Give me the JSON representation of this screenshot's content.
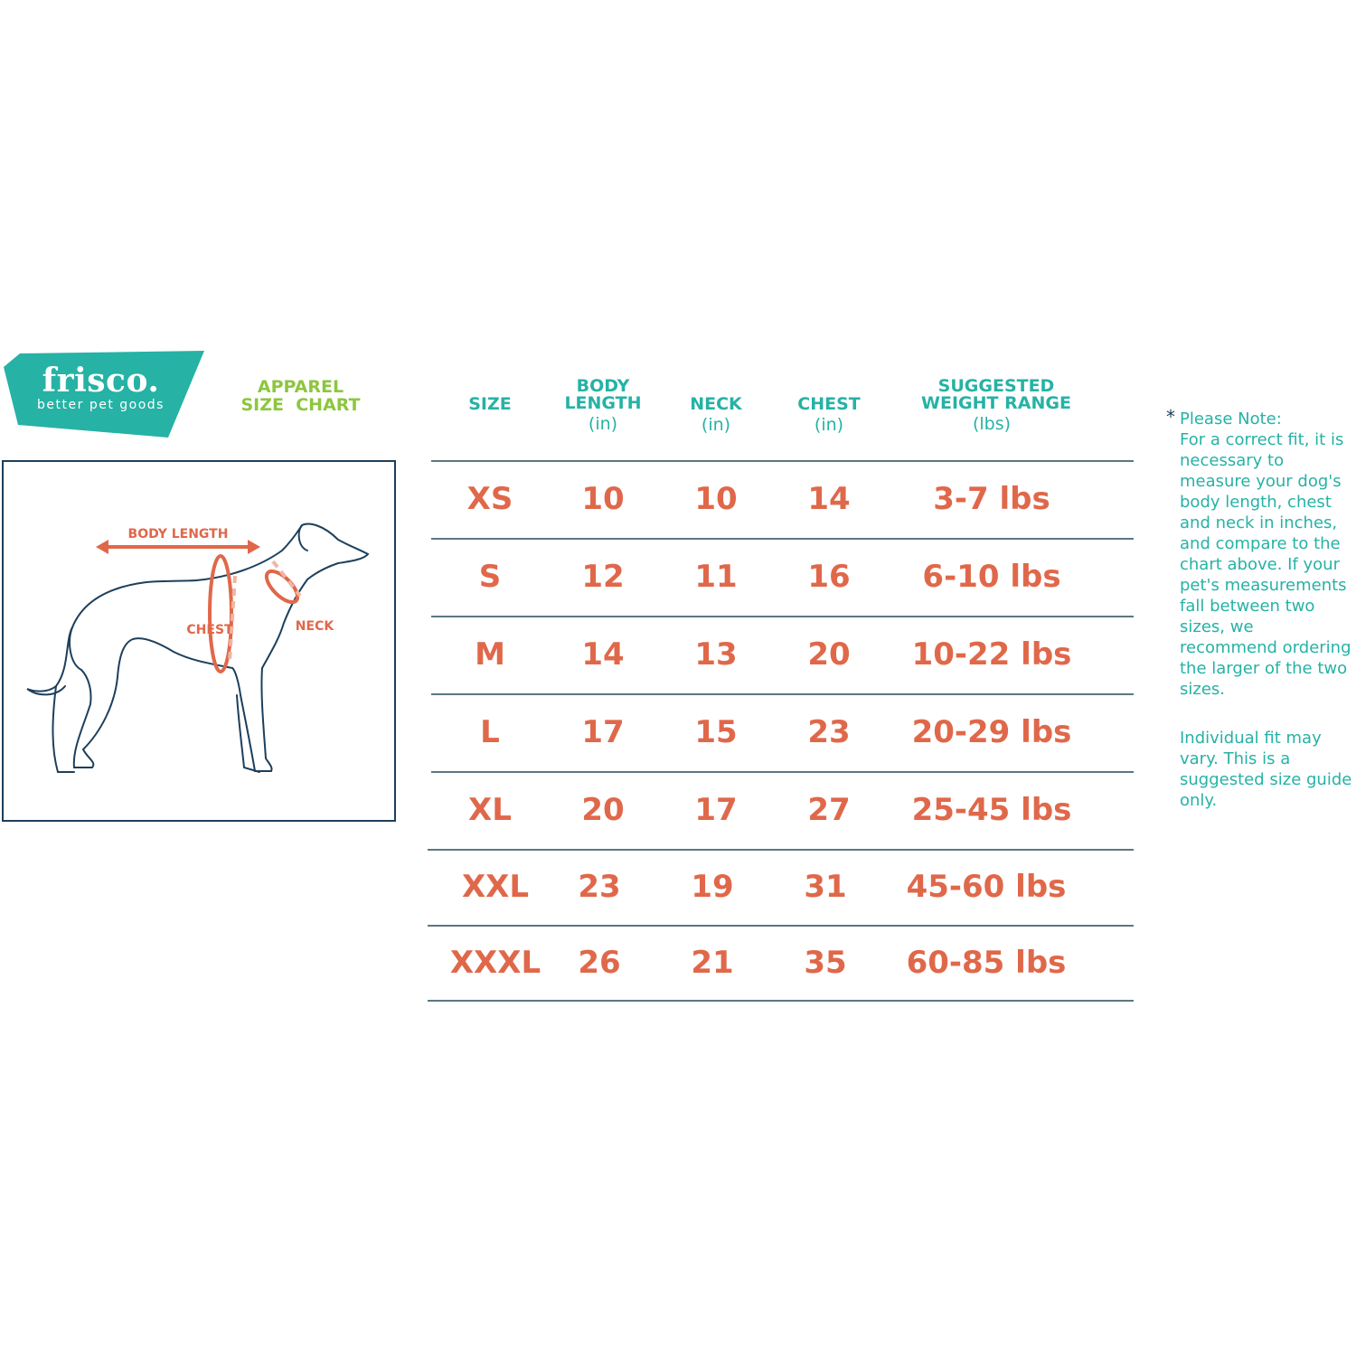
{
  "brand": {
    "name": "frisco.",
    "tagline": "better pet goods",
    "color": "#26b2a5"
  },
  "title": {
    "line1": "APPAREL",
    "line2": "SIZE  CHART",
    "color": "#8dc63f"
  },
  "diagram": {
    "body_length_label": "BODY LENGTH",
    "chest_label": "CHEST",
    "neck_label": "NECK",
    "accent": "#e0684a",
    "outline": "#1d3f5c"
  },
  "table": {
    "headers": [
      {
        "title": "SIZE",
        "unit": ""
      },
      {
        "title": "BODY LENGTH",
        "unit": "(in)"
      },
      {
        "title": "NECK",
        "unit": "(in)"
      },
      {
        "title": "CHEST",
        "unit": "(in)"
      },
      {
        "title": "SUGGESTED WEIGHT RANGE",
        "unit": "(lbs)"
      }
    ],
    "rows": [
      [
        "XS",
        "10",
        "10",
        "14",
        "3-7 lbs"
      ],
      [
        "S",
        "12",
        "11",
        "16",
        "6-10 lbs"
      ],
      [
        "M",
        "14",
        "13",
        "20",
        "10-22 lbs"
      ],
      [
        "L",
        "17",
        "15",
        "23",
        "20-29 lbs"
      ],
      [
        "XL",
        "20",
        "17",
        "27",
        "25-45 lbs"
      ],
      [
        "XXL",
        "23",
        "19",
        "31",
        "45-60 lbs"
      ],
      [
        "XXXL",
        "26",
        "21",
        "35",
        "60-85 lbs"
      ]
    ]
  },
  "note": {
    "star": "*",
    "heading": "Please Note:",
    "body": "For a correct fit, it is necessary to measure your dog's body length, chest and neck in inches, and compare to the chart above. If your pet's measurements fall between two sizes, we recommend ordering the larger of the two sizes.",
    "disclaimer": "Individual fit may vary. This is a suggested size guide only."
  }
}
